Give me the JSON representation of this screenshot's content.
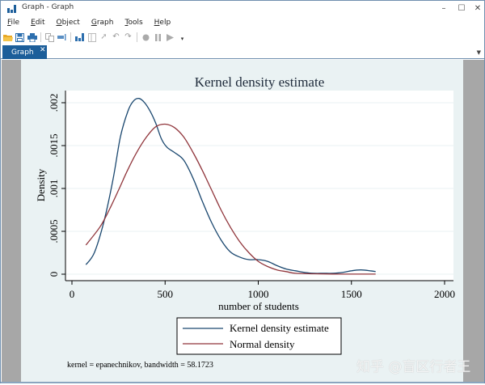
{
  "window": {
    "title": "Graph - Graph",
    "controls": {
      "minimize": "–",
      "maximize": "☐",
      "close": "✕"
    }
  },
  "menubar": {
    "items": [
      {
        "label": "File",
        "accel": "F"
      },
      {
        "label": "Edit",
        "accel": "E"
      },
      {
        "label": "Object",
        "accel": "O"
      },
      {
        "label": "Graph",
        "accel": "G"
      },
      {
        "label": "Tools",
        "accel": "T"
      },
      {
        "label": "Help",
        "accel": "H"
      }
    ]
  },
  "toolbar": {
    "icons": [
      "open-icon",
      "save-icon",
      "print-icon",
      "copy-icon",
      "rename-icon",
      "graph-editor-icon",
      "object-browser-icon",
      "pointer-icon",
      "undo-icon",
      "redo-icon",
      "record-icon",
      "pause-icon",
      "play-icon",
      "dropdown-icon"
    ]
  },
  "tabs": [
    {
      "label": "Graph",
      "close": "✕",
      "active": true
    }
  ],
  "watermark": "知乎 @盲区行者王",
  "colors": {
    "kde": "#1a476f",
    "normal": "#90353b",
    "plot_bg": "#ffffff",
    "graph_bg": "#eaf2f3",
    "grid": "#eaf2f3",
    "tab_active": "#1c5e9a"
  },
  "chart_data": {
    "type": "line",
    "title": "Kernel density estimate",
    "xlabel": "number of students",
    "ylabel": "Density",
    "xlim": [
      0,
      2000
    ],
    "ylim": [
      0,
      0.002
    ],
    "xticks": [
      0,
      500,
      1000,
      1500,
      2000
    ],
    "xtick_labels": [
      "0",
      "500",
      "1000",
      "1500",
      "2000"
    ],
    "yticks": [
      0,
      0.0005,
      0.001,
      0.0015,
      0.002
    ],
    "ytick_labels": [
      "0",
      ".0005",
      ".001",
      ".0015",
      ".002"
    ],
    "grid": true,
    "legend": {
      "position": "bottom",
      "entries": [
        "Kernel density estimate",
        "Normal density"
      ]
    },
    "note": "kernel = epanechnikov, bandwidth = 58.1723",
    "series": [
      {
        "name": "Kernel density estimate",
        "color": "#1a476f",
        "x": [
          75,
          120,
          170,
          220,
          260,
          300,
          330,
          360,
          390,
          420,
          450,
          480,
          510,
          550,
          600,
          650,
          700,
          750,
          800,
          850,
          900,
          950,
          1000,
          1050,
          1100,
          1150,
          1200,
          1250,
          1300,
          1350,
          1400,
          1450,
          1500,
          1550,
          1600,
          1630
        ],
        "y": [
          0.00011,
          0.00025,
          0.0006,
          0.0011,
          0.0016,
          0.0019,
          0.00202,
          0.00205,
          0.002,
          0.0019,
          0.00176,
          0.00158,
          0.00148,
          0.00142,
          0.00133,
          0.00112,
          0.00085,
          0.0006,
          0.0004,
          0.00026,
          0.0002,
          0.00017,
          0.00017,
          0.00015,
          0.0001,
          6e-05,
          4e-05,
          2e-05,
          1e-05,
          1e-05,
          1e-05,
          2e-05,
          4e-05,
          5e-05,
          4e-05,
          3e-05
        ]
      },
      {
        "name": "Normal density",
        "color": "#90353b",
        "x": [
          75,
          150,
          200,
          250,
          300,
          350,
          400,
          450,
          500,
          550,
          600,
          650,
          700,
          750,
          800,
          850,
          900,
          950,
          1000,
          1050,
          1100,
          1150,
          1200,
          1300,
          1400,
          1500,
          1630
        ],
        "y": [
          0.00034,
          0.00055,
          0.00075,
          0.00098,
          0.00122,
          0.00143,
          0.0016,
          0.00172,
          0.00175,
          0.00171,
          0.0016,
          0.00142,
          0.00121,
          0.00098,
          0.00075,
          0.00055,
          0.00038,
          0.00025,
          0.00015,
          9e-05,
          5e-05,
          3e-05,
          1e-05,
          5e-06,
          2e-06,
          1e-06,
          5e-07
        ]
      }
    ]
  }
}
